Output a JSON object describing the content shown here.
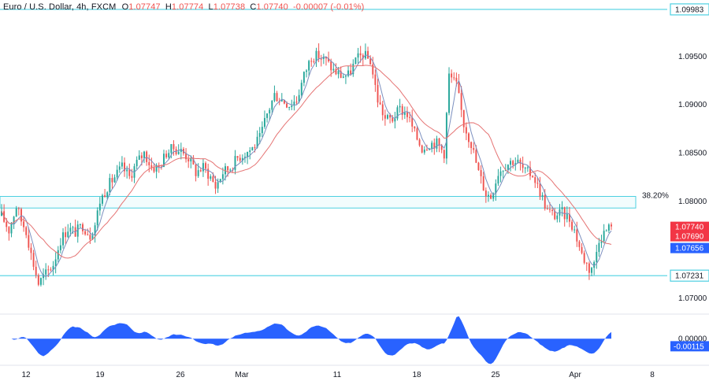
{
  "header": {
    "symbol": "Euro / U.S. Dollar, 4h, FXCM",
    "o_label": "O",
    "o_value": "1.07747",
    "h_label": "H",
    "h_value": "1.07774",
    "l_label": "L",
    "l_value": "1.07738",
    "c_label": "C",
    "c_value": "1.07740",
    "change": "-0.00007 (-0.01%)"
  },
  "colors": {
    "up": "#26a69a",
    "down": "#ef5350",
    "level": "#4dd0e1",
    "ma_fast": "#7b8fbf",
    "ma_slow": "#e57373",
    "oscillator": "#2962ff",
    "badge_blue": "#2962ff",
    "badge_teal": "#22ab94",
    "badge_red": "#f23645"
  },
  "chart_data": {
    "type": "candlestick",
    "ylim": [
      1.0685,
      1.1008
    ],
    "y_ticks": [
      "1.09500",
      "1.09000",
      "1.08500",
      "1.08000",
      "1.07000"
    ],
    "x_ticks": [
      "12",
      "19",
      "26",
      "Mar",
      "11",
      "18",
      "25",
      "Apr",
      "8"
    ],
    "levels": [
      {
        "value": 1.09983,
        "label": "1.09983"
      },
      {
        "value": 1.07231,
        "label": "1.07231"
      }
    ],
    "zone": {
      "low": 1.0793,
      "high": 1.0805,
      "label": "38.20%"
    },
    "price_badges": [
      {
        "label": "1.07740",
        "value": 1.0774,
        "color": "#f23645"
      },
      {
        "label": "1.07690",
        "value": 1.0769,
        "color": "#f23645"
      },
      {
        "label": "1.07656",
        "value": 1.07656,
        "color": "#2962ff"
      }
    ],
    "oscillator": {
      "ticks": [
        "0.00000"
      ],
      "badge": "-0.00115",
      "ylim": [
        -0.004,
        0.0033
      ]
    },
    "anchors": [
      [
        0,
        1.0785
      ],
      [
        3,
        1.077
      ],
      [
        6,
        1.0795
      ],
      [
        8,
        1.078
      ],
      [
        10,
        1.077
      ],
      [
        12,
        1.0745
      ],
      [
        15,
        1.0715
      ],
      [
        18,
        1.0725
      ],
      [
        21,
        1.0735
      ],
      [
        24,
        1.076
      ],
      [
        27,
        1.0772
      ],
      [
        30,
        1.0768
      ],
      [
        33,
        1.0775
      ],
      [
        36,
        1.0765
      ],
      [
        38,
        1.0776
      ],
      [
        40,
        1.08
      ],
      [
        43,
        1.0815
      ],
      [
        46,
        1.0825
      ],
      [
        49,
        1.0835
      ],
      [
        52,
        1.0825
      ],
      [
        55,
        1.084
      ],
      [
        58,
        1.085
      ],
      [
        61,
        1.0835
      ],
      [
        64,
        1.0835
      ],
      [
        67,
        1.085
      ],
      [
        70,
        1.0855
      ],
      [
        73,
        1.0852
      ],
      [
        76,
        1.0845
      ],
      [
        79,
        1.083
      ],
      [
        82,
        1.0835
      ],
      [
        85,
        1.0825
      ],
      [
        87,
        1.0815
      ],
      [
        90,
        1.083
      ],
      [
        93,
        1.0835
      ],
      [
        96,
        1.0845
      ],
      [
        99,
        1.085
      ],
      [
        102,
        1.0855
      ],
      [
        105,
        1.0865
      ],
      [
        108,
        1.089
      ],
      [
        111,
        1.091
      ],
      [
        114,
        1.0905
      ],
      [
        117,
        1.09
      ],
      [
        120,
        1.0905
      ],
      [
        123,
        1.093
      ],
      [
        126,
        1.095
      ],
      [
        129,
        1.095
      ],
      [
        132,
        1.0945
      ],
      [
        135,
        1.0935
      ],
      [
        138,
        1.093
      ],
      [
        141,
        1.093
      ],
      [
        144,
        1.0945
      ],
      [
        147,
        1.0952
      ],
      [
        150,
        1.0945
      ],
      [
        153,
        1.0905
      ],
      [
        156,
        1.0885
      ],
      [
        159,
        1.0885
      ],
      [
        162,
        1.0895
      ],
      [
        165,
        1.089
      ],
      [
        168,
        1.087
      ],
      [
        171,
        1.0855
      ],
      [
        174,
        1.086
      ],
      [
        177,
        1.086
      ],
      [
        180,
        1.085
      ],
      [
        182,
        1.093
      ],
      [
        185,
        1.092
      ],
      [
        188,
        1.088
      ],
      [
        191,
        1.086
      ],
      [
        194,
        1.083
      ],
      [
        197,
        1.0808
      ],
      [
        199,
        1.0805
      ],
      [
        202,
        1.083
      ],
      [
        205,
        1.0838
      ],
      [
        208,
        1.0842
      ],
      [
        210,
        1.084
      ],
      [
        213,
        1.083
      ],
      [
        216,
        1.0828
      ],
      [
        219,
        1.081
      ],
      [
        222,
        1.079
      ],
      [
        225,
        1.0785
      ],
      [
        228,
        1.0788
      ],
      [
        231,
        1.0782
      ],
      [
        233,
        1.077
      ],
      [
        236,
        1.0745
      ],
      [
        239,
        1.073
      ],
      [
        241,
        1.0735
      ],
      [
        243,
        1.0762
      ],
      [
        246,
        1.077
      ],
      [
        248,
        1.0774
      ]
    ],
    "candles_count": 249,
    "seed": 17
  }
}
